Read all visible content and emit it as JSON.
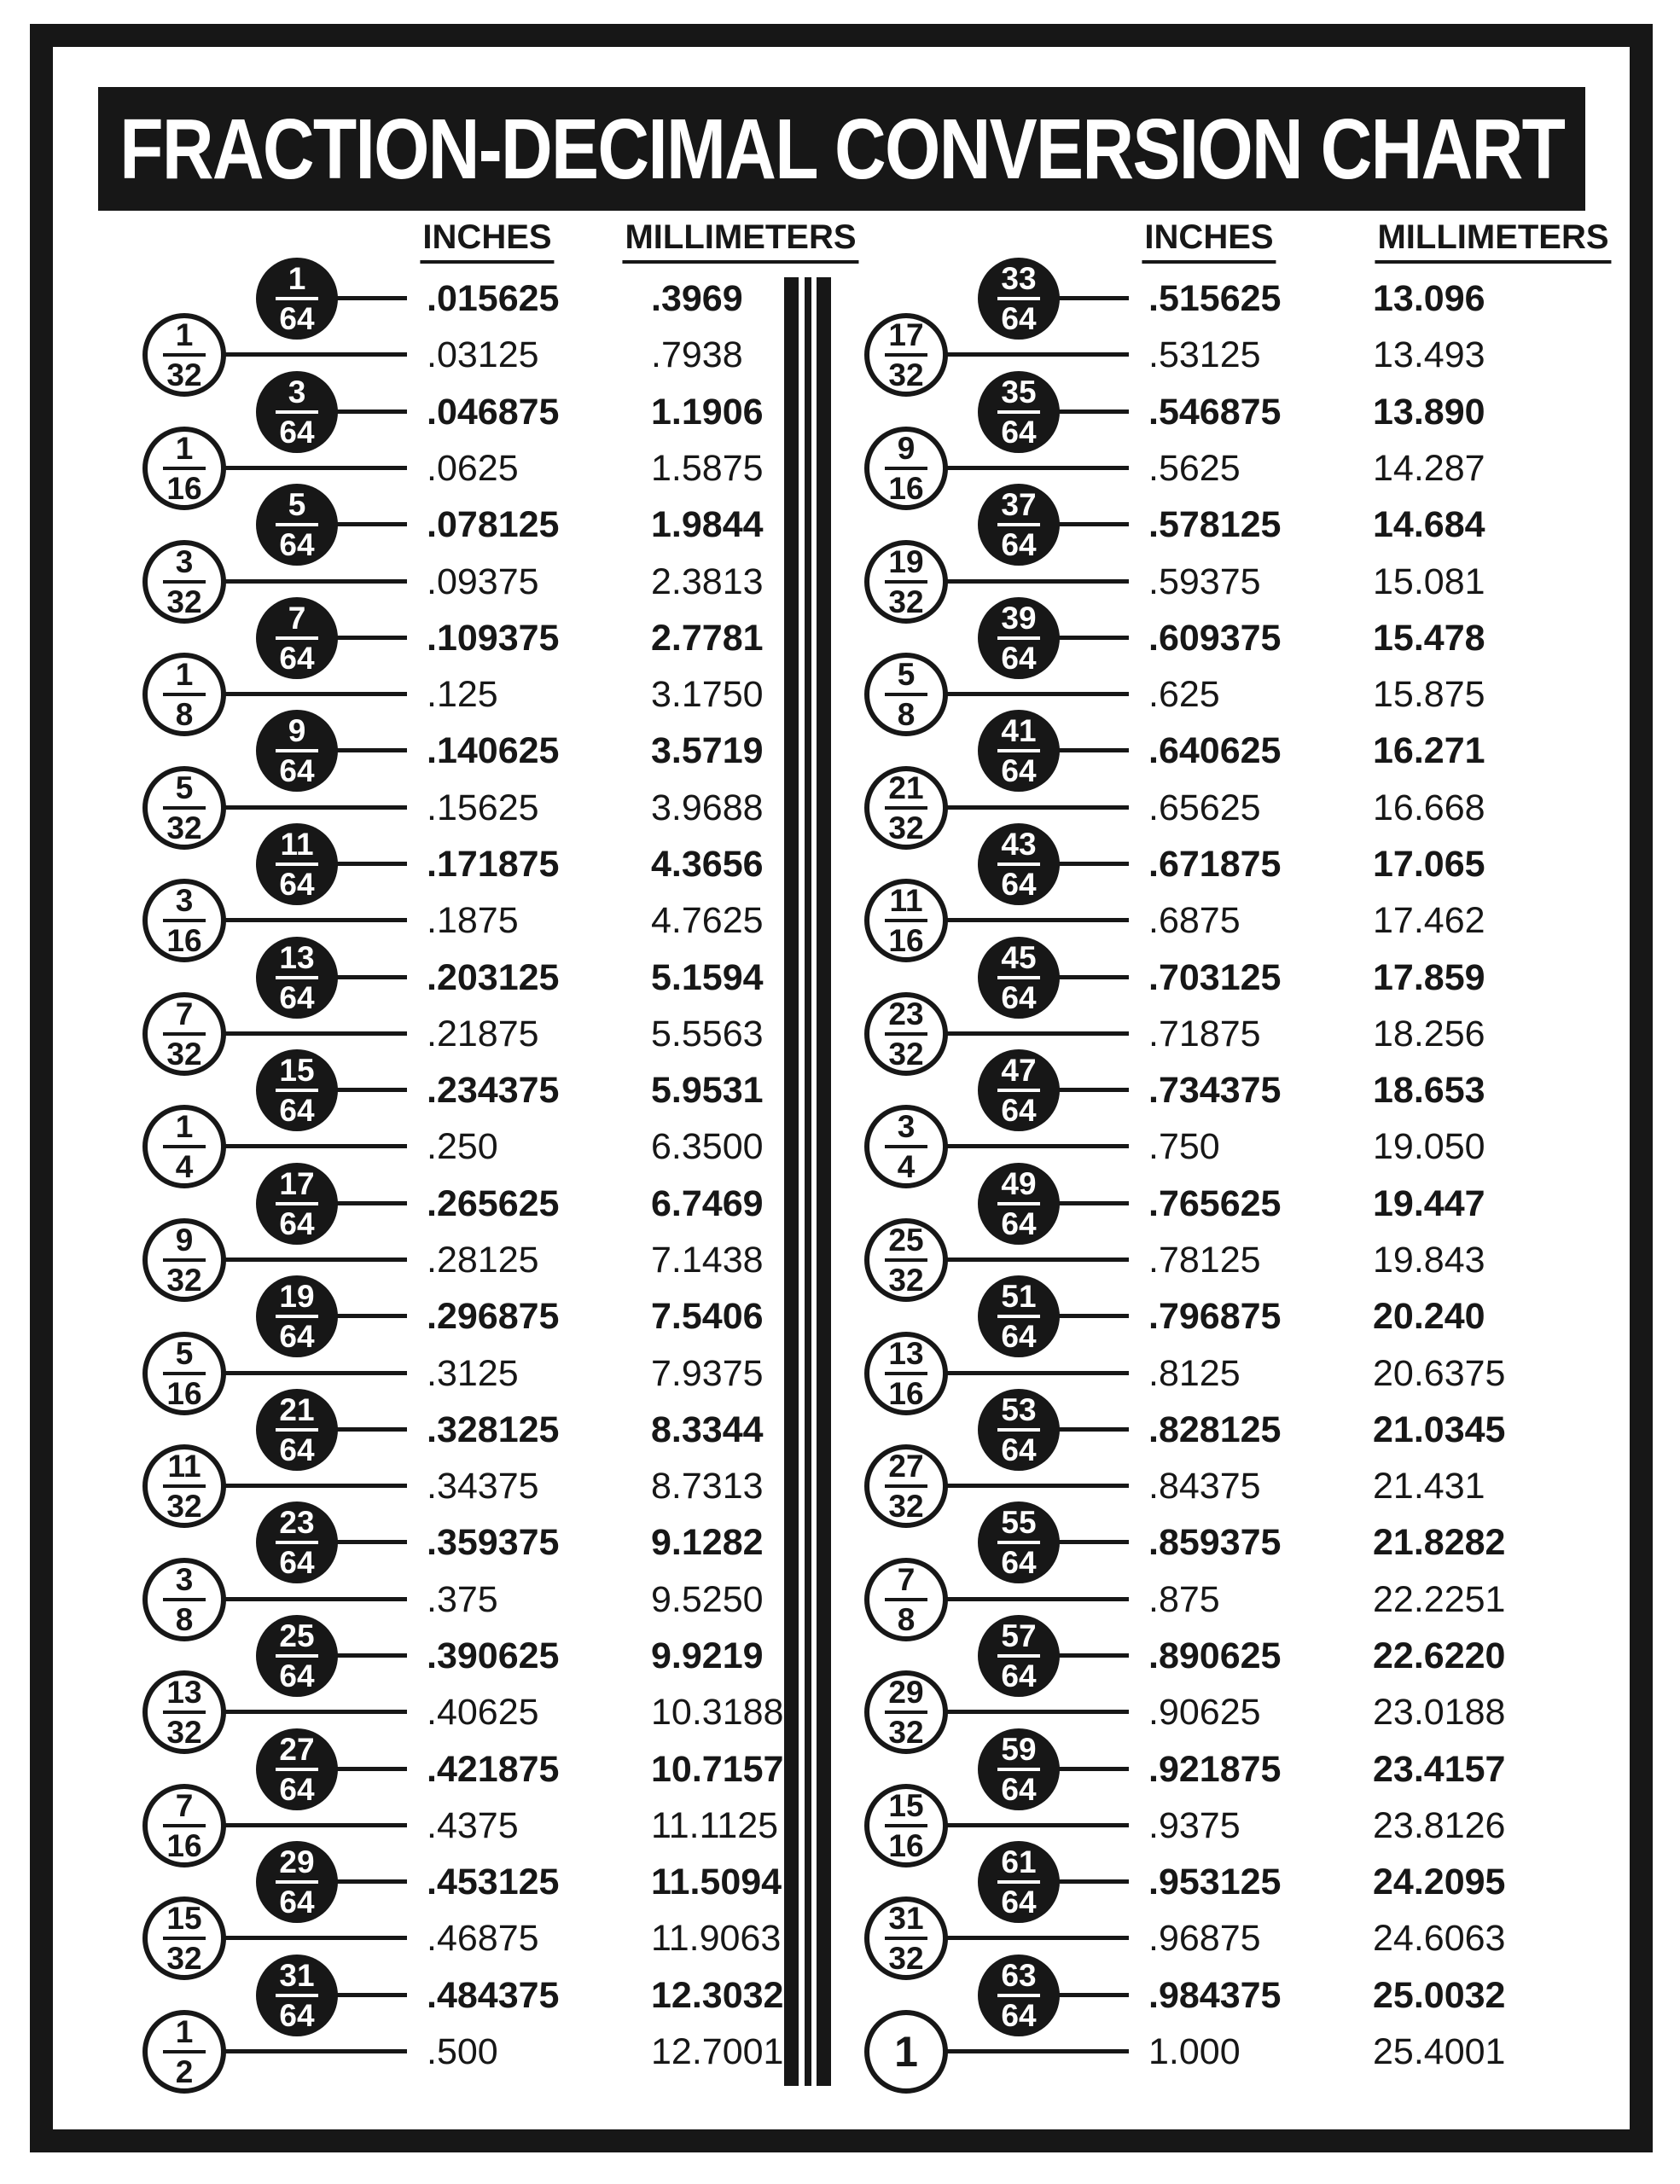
{
  "title": "FRACTION-DECIMAL CONVERSION CHART",
  "headers": {
    "inches": "INCHES",
    "millimeters": "MILLIMETERS"
  },
  "colors": {
    "ink": "#171717",
    "paper": "#ffffff"
  },
  "columns": [
    {
      "side": "left",
      "rows": [
        {
          "num": "1",
          "den": "64",
          "style": "black",
          "inches": ".015625",
          "mm": ".3969"
        },
        {
          "num": "1",
          "den": "32",
          "style": "white",
          "inches": ".03125",
          "mm": ".7938"
        },
        {
          "num": "3",
          "den": "64",
          "style": "black",
          "inches": ".046875",
          "mm": "1.1906"
        },
        {
          "num": "1",
          "den": "16",
          "style": "white",
          "inches": ".0625",
          "mm": "1.5875"
        },
        {
          "num": "5",
          "den": "64",
          "style": "black",
          "inches": ".078125",
          "mm": "1.9844"
        },
        {
          "num": "3",
          "den": "32",
          "style": "white",
          "inches": ".09375",
          "mm": "2.3813"
        },
        {
          "num": "7",
          "den": "64",
          "style": "black",
          "inches": ".109375",
          "mm": "2.7781"
        },
        {
          "num": "1",
          "den": "8",
          "style": "white",
          "inches": ".125",
          "mm": "3.1750"
        },
        {
          "num": "9",
          "den": "64",
          "style": "black",
          "inches": ".140625",
          "mm": "3.5719"
        },
        {
          "num": "5",
          "den": "32",
          "style": "white",
          "inches": ".15625",
          "mm": "3.9688"
        },
        {
          "num": "11",
          "den": "64",
          "style": "black",
          "inches": ".171875",
          "mm": "4.3656"
        },
        {
          "num": "3",
          "den": "16",
          "style": "white",
          "inches": ".1875",
          "mm": "4.7625"
        },
        {
          "num": "13",
          "den": "64",
          "style": "black",
          "inches": ".203125",
          "mm": "5.1594"
        },
        {
          "num": "7",
          "den": "32",
          "style": "white",
          "inches": ".21875",
          "mm": "5.5563"
        },
        {
          "num": "15",
          "den": "64",
          "style": "black",
          "inches": ".234375",
          "mm": "5.9531"
        },
        {
          "num": "1",
          "den": "4",
          "style": "white",
          "inches": ".250",
          "mm": "6.3500"
        },
        {
          "num": "17",
          "den": "64",
          "style": "black",
          "inches": ".265625",
          "mm": "6.7469"
        },
        {
          "num": "9",
          "den": "32",
          "style": "white",
          "inches": ".28125",
          "mm": "7.1438"
        },
        {
          "num": "19",
          "den": "64",
          "style": "black",
          "inches": ".296875",
          "mm": "7.5406"
        },
        {
          "num": "5",
          "den": "16",
          "style": "white",
          "inches": ".3125",
          "mm": "7.9375"
        },
        {
          "num": "21",
          "den": "64",
          "style": "black",
          "inches": ".328125",
          "mm": "8.3344"
        },
        {
          "num": "11",
          "den": "32",
          "style": "white",
          "inches": ".34375",
          "mm": "8.7313"
        },
        {
          "num": "23",
          "den": "64",
          "style": "black",
          "inches": ".359375",
          "mm": "9.1282"
        },
        {
          "num": "3",
          "den": "8",
          "style": "white",
          "inches": ".375",
          "mm": "9.5250"
        },
        {
          "num": "25",
          "den": "64",
          "style": "black",
          "inches": ".390625",
          "mm": "9.9219"
        },
        {
          "num": "13",
          "den": "32",
          "style": "white",
          "inches": ".40625",
          "mm": "10.3188"
        },
        {
          "num": "27",
          "den": "64",
          "style": "black",
          "inches": ".421875",
          "mm": "10.7157"
        },
        {
          "num": "7",
          "den": "16",
          "style": "white",
          "inches": ".4375",
          "mm": "11.1125"
        },
        {
          "num": "29",
          "den": "64",
          "style": "black",
          "inches": ".453125",
          "mm": "11.5094"
        },
        {
          "num": "15",
          "den": "32",
          "style": "white",
          "inches": ".46875",
          "mm": "11.9063"
        },
        {
          "num": "31",
          "den": "64",
          "style": "black",
          "inches": ".484375",
          "mm": "12.3032"
        },
        {
          "num": "1",
          "den": "2",
          "style": "white",
          "inches": ".500",
          "mm": "12.7001"
        }
      ]
    },
    {
      "side": "right",
      "rows": [
        {
          "num": "33",
          "den": "64",
          "style": "black",
          "inches": ".515625",
          "mm": "13.096"
        },
        {
          "num": "17",
          "den": "32",
          "style": "white",
          "inches": ".53125",
          "mm": "13.493"
        },
        {
          "num": "35",
          "den": "64",
          "style": "black",
          "inches": ".546875",
          "mm": "13.890"
        },
        {
          "num": "9",
          "den": "16",
          "style": "white",
          "inches": ".5625",
          "mm": "14.287"
        },
        {
          "num": "37",
          "den": "64",
          "style": "black",
          "inches": ".578125",
          "mm": "14.684"
        },
        {
          "num": "19",
          "den": "32",
          "style": "white",
          "inches": ".59375",
          "mm": "15.081"
        },
        {
          "num": "39",
          "den": "64",
          "style": "black",
          "inches": ".609375",
          "mm": "15.478"
        },
        {
          "num": "5",
          "den": "8",
          "style": "white",
          "inches": ".625",
          "mm": "15.875"
        },
        {
          "num": "41",
          "den": "64",
          "style": "black",
          "inches": ".640625",
          "mm": "16.271"
        },
        {
          "num": "21",
          "den": "32",
          "style": "white",
          "inches": ".65625",
          "mm": "16.668"
        },
        {
          "num": "43",
          "den": "64",
          "style": "black",
          "inches": ".671875",
          "mm": "17.065"
        },
        {
          "num": "11",
          "den": "16",
          "style": "white",
          "inches": ".6875",
          "mm": "17.462"
        },
        {
          "num": "45",
          "den": "64",
          "style": "black",
          "inches": ".703125",
          "mm": "17.859"
        },
        {
          "num": "23",
          "den": "32",
          "style": "white",
          "inches": ".71875",
          "mm": "18.256"
        },
        {
          "num": "47",
          "den": "64",
          "style": "black",
          "inches": ".734375",
          "mm": "18.653"
        },
        {
          "num": "3",
          "den": "4",
          "style": "white",
          "inches": ".750",
          "mm": "19.050"
        },
        {
          "num": "49",
          "den": "64",
          "style": "black",
          "inches": ".765625",
          "mm": "19.447"
        },
        {
          "num": "25",
          "den": "32",
          "style": "white",
          "inches": ".78125",
          "mm": "19.843"
        },
        {
          "num": "51",
          "den": "64",
          "style": "black",
          "inches": ".796875",
          "mm": "20.240"
        },
        {
          "num": "13",
          "den": "16",
          "style": "white",
          "inches": ".8125",
          "mm": "20.6375"
        },
        {
          "num": "53",
          "den": "64",
          "style": "black",
          "inches": ".828125",
          "mm": "21.0345"
        },
        {
          "num": "27",
          "den": "32",
          "style": "white",
          "inches": ".84375",
          "mm": "21.431"
        },
        {
          "num": "55",
          "den": "64",
          "style": "black",
          "inches": ".859375",
          "mm": "21.8282"
        },
        {
          "num": "7",
          "den": "8",
          "style": "white",
          "inches": ".875",
          "mm": "22.2251"
        },
        {
          "num": "57",
          "den": "64",
          "style": "black",
          "inches": ".890625",
          "mm": "22.6220"
        },
        {
          "num": "29",
          "den": "32",
          "style": "white",
          "inches": ".90625",
          "mm": "23.0188"
        },
        {
          "num": "59",
          "den": "64",
          "style": "black",
          "inches": ".921875",
          "mm": "23.4157"
        },
        {
          "num": "15",
          "den": "16",
          "style": "white",
          "inches": ".9375",
          "mm": "23.8126"
        },
        {
          "num": "61",
          "den": "64",
          "style": "black",
          "inches": ".953125",
          "mm": "24.2095"
        },
        {
          "num": "31",
          "den": "32",
          "style": "white",
          "inches": ".96875",
          "mm": "24.6063"
        },
        {
          "num": "63",
          "den": "64",
          "style": "black",
          "inches": ".984375",
          "mm": "25.0032"
        },
        {
          "num": "1",
          "den": null,
          "style": "white",
          "inches": "1.000",
          "mm": "25.4001"
        }
      ]
    }
  ]
}
